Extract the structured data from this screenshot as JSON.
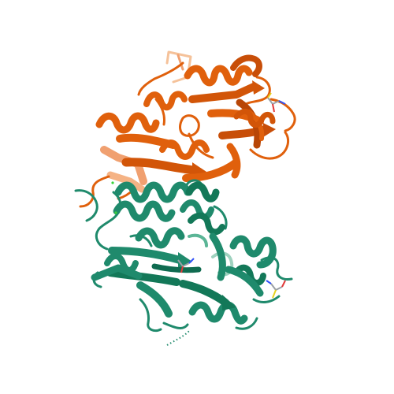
{
  "viewer": {
    "background": "#ffffff"
  },
  "chains": [
    {
      "id": "A",
      "color": "#e0600c",
      "shade": "#b84606",
      "light": "#f0a070",
      "pale": "#f5c29a"
    },
    {
      "id": "B",
      "color": "#1f8a6c",
      "shade": "#116b52",
      "light": "#5bb596",
      "pale": "#9fd2bf"
    }
  ],
  "ligand_colors": {
    "carbon": "#9aa0a6",
    "oxygen": "#e23b3b",
    "nitrogen": "#3050f8",
    "sulfur": "#e6d21e"
  },
  "ions": {
    "color": "#39d339"
  }
}
